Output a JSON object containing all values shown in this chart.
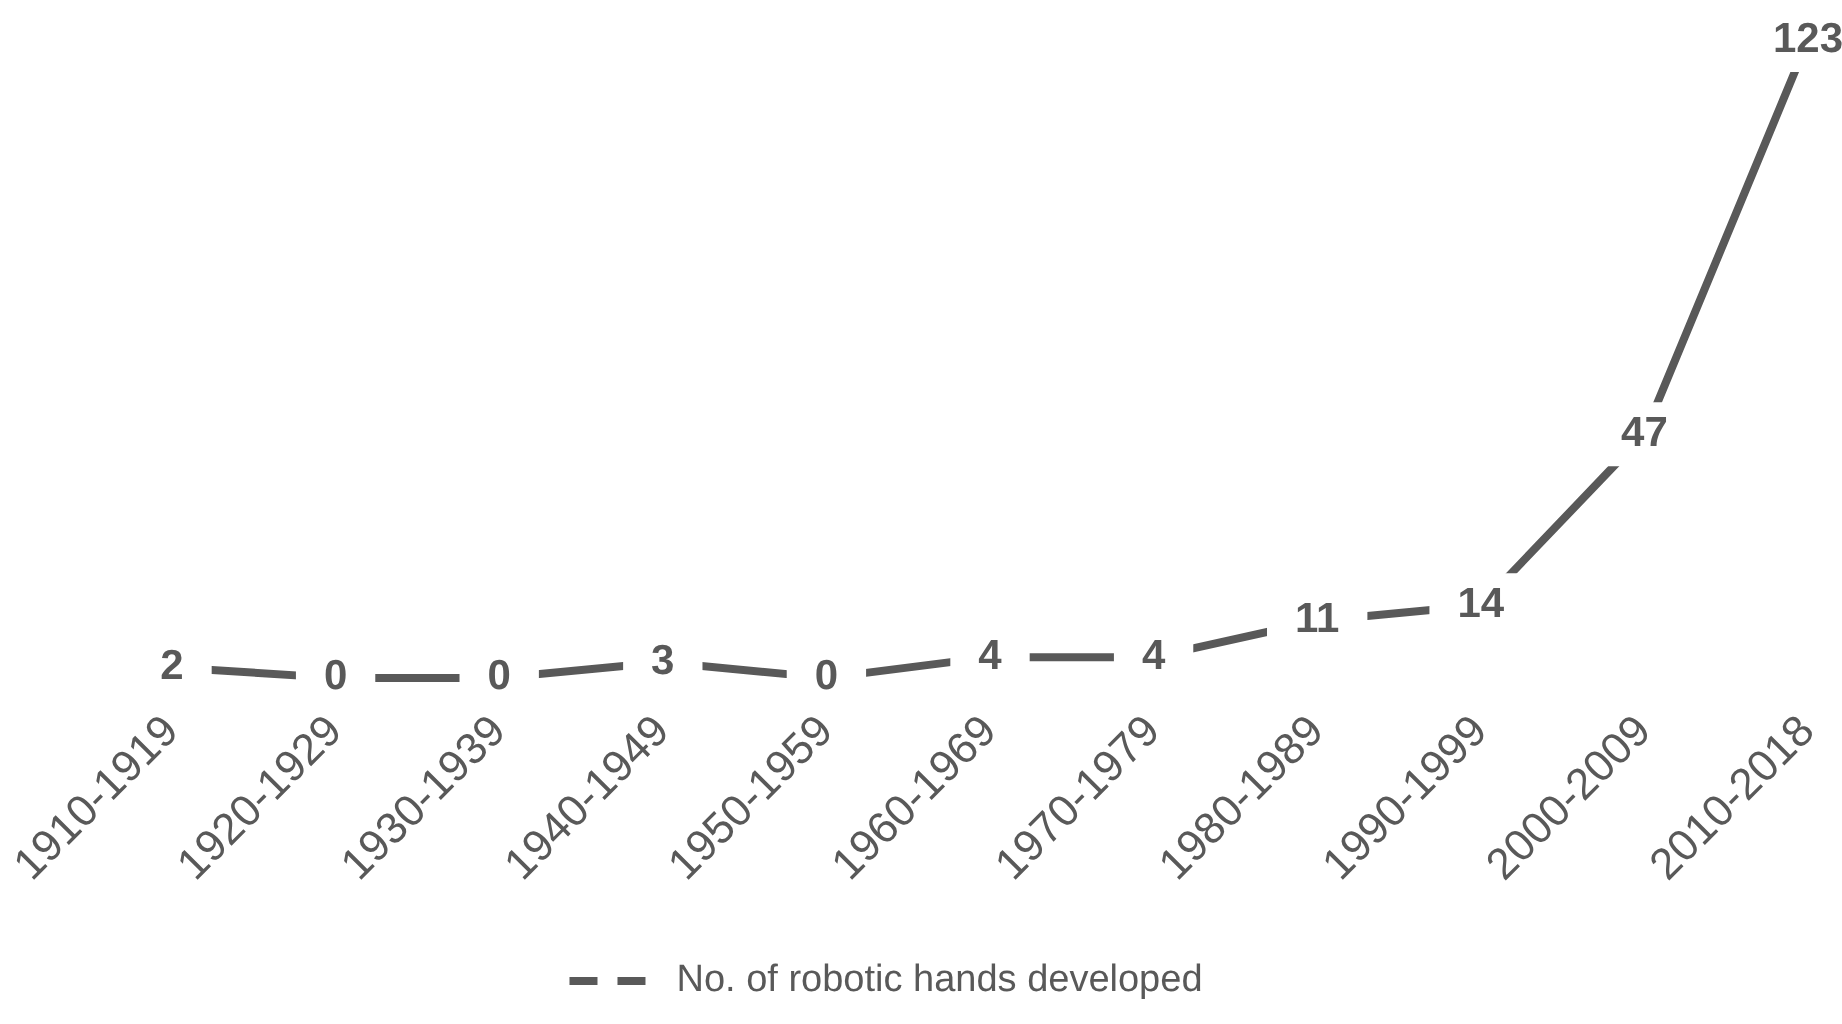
{
  "chart_data": {
    "type": "line",
    "categories": [
      "1910-1919",
      "1920-1929",
      "1930-1939",
      "1940-1949",
      "1950-1959",
      "1960-1969",
      "1970-1979",
      "1980-1989",
      "1990-1999",
      "2000-2009",
      "2010-2018"
    ],
    "series": [
      {
        "name": "No. of robotic hands developed",
        "color": "#595959",
        "values": [
          2,
          0,
          0,
          3,
          0,
          4,
          4,
          11,
          14,
          47,
          123
        ]
      }
    ],
    "data_labels": true,
    "legend": "bottom",
    "grid": false
  }
}
